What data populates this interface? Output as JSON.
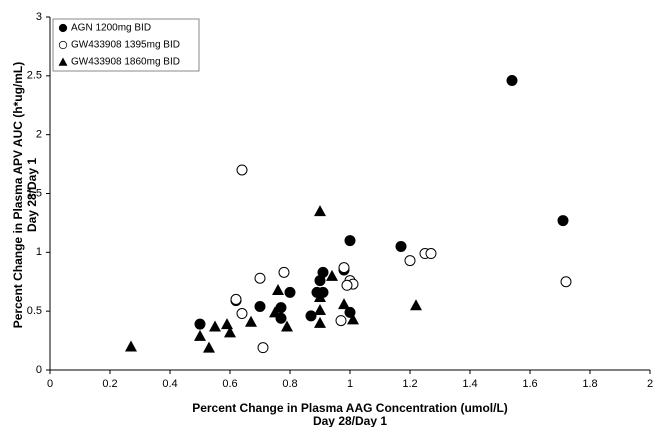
{
  "chart_data": {
    "type": "scatter",
    "x_label": "Percent Change in Plasma AAG Concentration (umol/L)",
    "x_label_2": "Day 28/Day 1",
    "y_label": "Percent Change in Plasma APV AUC (h*ug/mL)",
    "y_label_2": "Day 28/Day 1",
    "xlim": [
      0,
      2
    ],
    "xticks": [
      0,
      0.2,
      0.4,
      0.6,
      0.8,
      1,
      1.2,
      1.4,
      1.6,
      1.8,
      2
    ],
    "ylim": [
      0,
      3
    ],
    "yticks": [
      0,
      0.5,
      1,
      1.5,
      2,
      2.5,
      3
    ],
    "grid": false,
    "legend": "top-left",
    "series": [
      {
        "name": "AGN 1200mg BID",
        "color": "#000000",
        "marker": "filled-circle",
        "x": [
          1.54,
          1.71,
          1.0,
          1.17,
          0.98,
          0.91,
          0.91,
          0.89,
          0.9,
          0.87,
          1.0,
          0.8,
          0.77,
          0.77,
          0.7,
          0.62,
          0.5
        ],
        "values": [
          2.46,
          1.27,
          1.1,
          1.05,
          0.85,
          0.83,
          0.66,
          0.66,
          0.76,
          0.46,
          0.49,
          0.66,
          0.53,
          0.44,
          0.54,
          0.59,
          0.39
        ]
      },
      {
        "name": "GW433908 1395mg BID",
        "color": "#000000",
        "marker": "open-circle",
        "x": [
          0.64,
          0.62,
          0.64,
          0.7,
          0.78,
          0.71,
          0.98,
          1.0,
          1.01,
          0.99,
          0.97,
          1.2,
          1.25,
          1.27,
          1.72
        ],
        "values": [
          1.7,
          0.6,
          0.48,
          0.78,
          0.83,
          0.19,
          0.87,
          0.76,
          0.73,
          0.72,
          0.42,
          0.93,
          0.99,
          0.99,
          0.75
        ]
      },
      {
        "name": "GW433908 1860mg BID",
        "color": "#000000",
        "marker": "triangle",
        "x": [
          0.27,
          0.5,
          0.53,
          0.55,
          0.59,
          0.6,
          0.67,
          0.76,
          0.75,
          0.79,
          0.9,
          0.94,
          0.9,
          0.9,
          0.9,
          0.98,
          1.01,
          1.22
        ],
        "values": [
          0.2,
          0.29,
          0.19,
          0.37,
          0.39,
          0.32,
          0.41,
          0.68,
          0.49,
          0.37,
          1.35,
          0.8,
          0.62,
          0.51,
          0.4,
          0.56,
          0.43,
          0.55
        ]
      }
    ]
  }
}
